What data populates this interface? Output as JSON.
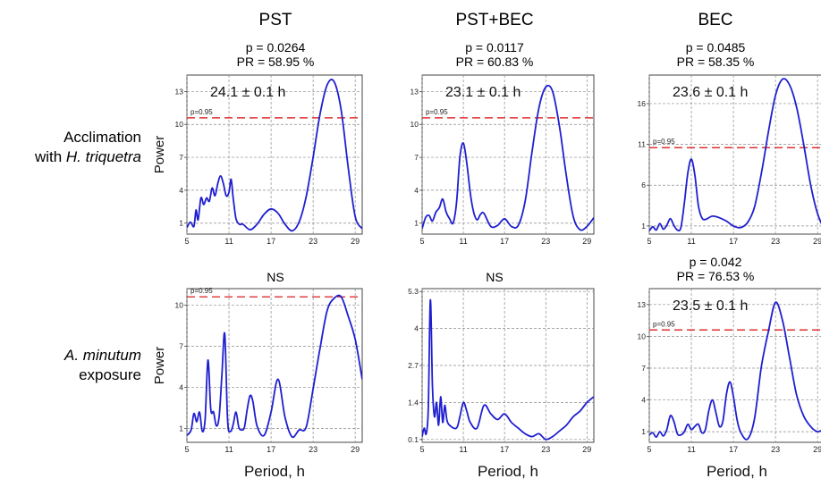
{
  "column_titles": [
    "PST",
    "PST+BEC",
    "BEC"
  ],
  "row_labels": [
    {
      "line1": "Acclimation",
      "line2_prefix": "with ",
      "line2_italic": "H. triquetra"
    },
    {
      "line1_italic": "A. minutum",
      "line2": "exposure"
    }
  ],
  "panels": [
    {
      "p": "p = 0.0264",
      "pr": "PR = 58.95 %",
      "period": "24.1 ± 0.1 h",
      "ns": ""
    },
    {
      "p": "p = 0.0117",
      "pr": "PR = 60.83 %",
      "period": "23.1 ± 0.1 h",
      "ns": ""
    },
    {
      "p": "p = 0.0485",
      "pr": "PR = 58.35 %",
      "period": "23.6 ± 0.1 h",
      "ns": ""
    },
    {
      "p": "",
      "pr": "",
      "period": "",
      "ns": "NS"
    },
    {
      "p": "",
      "pr": "",
      "period": "",
      "ns": "NS"
    },
    {
      "p": "p = 0.042",
      "pr": "PR = 76.53 %",
      "period": "23.5 ± 0.1 h",
      "ns": ""
    }
  ],
  "colors": {
    "curve": "#1f1fd0",
    "threshold": "#e03030",
    "grid": "#8a8a8a"
  },
  "chart_data": [
    {
      "type": "line",
      "xlabel": "",
      "ylabel": "Power",
      "xlim": [
        5,
        30
      ],
      "ylim": [
        0,
        14.5
      ],
      "xticks": [
        5,
        11,
        17,
        23,
        29
      ],
      "yticks": [
        1,
        4,
        7,
        10,
        13
      ],
      "threshold": 10.6,
      "threshold_label": "p=0.95",
      "series": [
        {
          "x": [
            5,
            5.5,
            6,
            6.3,
            6.6,
            7,
            7.4,
            7.8,
            8.2,
            8.6,
            9,
            9.4,
            9.8,
            10.2,
            10.6,
            11,
            11.3,
            11.6,
            12,
            12.5,
            13,
            14,
            15,
            16,
            17,
            18,
            19,
            20,
            21,
            22,
            23,
            24,
            25,
            26,
            27,
            28,
            29,
            30
          ],
          "y": [
            0.6,
            1.1,
            0.7,
            2.2,
            1.3,
            3.3,
            2.7,
            3.3,
            3.0,
            4.2,
            3.5,
            4.6,
            5.3,
            4.6,
            3.5,
            3.8,
            5.0,
            3.3,
            1.4,
            0.9,
            0.9,
            0.4,
            0.9,
            1.8,
            2.3,
            1.9,
            0.9,
            0.3,
            1.1,
            3.4,
            7.0,
            11.0,
            13.6,
            13.9,
            11.3,
            6.1,
            1.6,
            0.5
          ]
        }
      ]
    },
    {
      "type": "line",
      "xlabel": "",
      "ylabel": "",
      "xlim": [
        5,
        30
      ],
      "ylim": [
        0,
        14.5
      ],
      "xticks": [
        5,
        11,
        17,
        23,
        29
      ],
      "yticks": [
        1,
        4,
        7,
        10,
        13
      ],
      "threshold": 10.6,
      "threshold_label": "p=0.95",
      "series": [
        {
          "x": [
            5,
            5.5,
            6,
            6.5,
            7,
            7.5,
            8,
            8.5,
            9,
            9.5,
            10,
            10.5,
            11,
            11.5,
            12,
            12.5,
            13,
            13.5,
            14,
            15,
            16,
            17,
            18,
            19,
            20,
            21,
            22,
            23,
            24,
            25,
            26,
            27,
            28,
            29,
            30
          ],
          "y": [
            0.5,
            1.5,
            1.7,
            1.2,
            2.0,
            2.4,
            3.2,
            2.0,
            1.4,
            1.0,
            2.8,
            7.0,
            8.3,
            6.5,
            3.8,
            2.0,
            1.3,
            1.8,
            1.9,
            0.7,
            0.8,
            1.4,
            0.7,
            0.8,
            3.0,
            7.5,
            11.5,
            13.4,
            13.0,
            9.8,
            5.3,
            1.6,
            0.4,
            0.7,
            1.5
          ]
        }
      ]
    },
    {
      "type": "line",
      "xlabel": "",
      "ylabel": "",
      "xlim": [
        5,
        30
      ],
      "ylim": [
        0,
        19.5
      ],
      "xticks": [
        5,
        11,
        17,
        23,
        29
      ],
      "yticks": [
        1,
        6,
        11,
        16
      ],
      "threshold": 10.6,
      "threshold_label": "p=0.95",
      "series": [
        {
          "x": [
            5,
            5.5,
            6,
            6.5,
            7,
            7.5,
            8,
            8.5,
            9,
            9.5,
            10,
            10.5,
            11,
            11.5,
            12,
            12.5,
            13,
            14,
            15,
            16,
            17,
            18,
            19,
            20,
            21,
            22,
            23,
            24,
            25,
            26,
            27,
            28,
            29,
            30
          ],
          "y": [
            0.4,
            0.9,
            0.5,
            1.3,
            0.6,
            1.1,
            1.9,
            1.1,
            0.5,
            0.8,
            3.8,
            7.5,
            9.2,
            7.2,
            3.5,
            2.0,
            1.8,
            2.2,
            2.0,
            1.6,
            1.0,
            0.8,
            1.4,
            3.3,
            7.5,
            12.6,
            17.0,
            19.0,
            18.3,
            15.6,
            11.1,
            6.1,
            2.5,
            0.5
          ]
        }
      ]
    },
    {
      "type": "line",
      "xlabel": "Period, h",
      "ylabel": "Power",
      "xlim": [
        5,
        30
      ],
      "ylim": [
        0,
        11.2
      ],
      "xticks": [
        5,
        11,
        17,
        23,
        29
      ],
      "yticks": [
        1,
        4,
        7,
        10
      ],
      "threshold": 10.6,
      "threshold_label": "p=0.95",
      "series": [
        {
          "x": [
            5,
            5.6,
            6.0,
            6.4,
            6.8,
            7.2,
            7.6,
            8.0,
            8.4,
            8.8,
            9.2,
            9.6,
            10.0,
            10.4,
            10.8,
            11.2,
            11.6,
            12.0,
            12.4,
            12.8,
            13.2,
            13.6,
            14.0,
            14.4,
            15,
            16,
            17,
            18,
            19,
            20,
            21,
            22,
            23,
            24,
            25,
            26,
            27,
            28,
            29,
            30
          ],
          "y": [
            0.5,
            0.9,
            2.1,
            1.5,
            2.2,
            0.8,
            1.7,
            6.0,
            2.4,
            2.2,
            1.2,
            1.9,
            5.0,
            7.9,
            1.6,
            0.8,
            1.3,
            2.2,
            1.1,
            0.9,
            1.1,
            2.4,
            3.4,
            3.0,
            1.2,
            0.5,
            2.2,
            4.6,
            1.8,
            0.4,
            0.9,
            1.1,
            3.9,
            6.9,
            9.6,
            10.5,
            10.6,
            9.2,
            7.5,
            4.6
          ]
        }
      ]
    },
    {
      "type": "line",
      "xlabel": "Period, h",
      "ylabel": "",
      "xlim": [
        5,
        30
      ],
      "ylim": [
        0,
        5.4
      ],
      "xticks": [
        5,
        11,
        17,
        23,
        29
      ],
      "yticks": [
        0.1,
        1.4,
        2.7,
        4,
        5.3
      ],
      "threshold": null,
      "threshold_label": "",
      "series": [
        {
          "x": [
            5,
            5.3,
            5.6,
            5.9,
            6.2,
            6.5,
            6.8,
            7.1,
            7.4,
            7.7,
            8.0,
            8.3,
            8.6,
            9,
            10,
            10.5,
            11,
            11.5,
            12,
            13,
            14,
            15,
            16,
            17,
            18,
            19,
            20,
            21,
            22,
            23,
            24,
            25,
            26,
            27,
            28,
            29,
            30
          ],
          "y": [
            0.2,
            0.5,
            0.3,
            1.2,
            5.0,
            2.0,
            0.9,
            1.4,
            0.6,
            1.6,
            0.7,
            1.3,
            0.8,
            0.6,
            0.5,
            0.9,
            1.4,
            1.1,
            0.7,
            0.5,
            1.3,
            1.0,
            0.8,
            1.0,
            0.7,
            0.5,
            0.3,
            0.2,
            0.3,
            0.1,
            0.2,
            0.4,
            0.6,
            0.9,
            1.1,
            1.4,
            1.6
          ]
        }
      ]
    },
    {
      "type": "line",
      "xlabel": "Period, h",
      "ylabel": "",
      "xlim": [
        5,
        30
      ],
      "ylim": [
        0,
        14.5
      ],
      "xticks": [
        5,
        11,
        17,
        23,
        29
      ],
      "yticks": [
        1,
        4,
        7,
        10,
        13
      ],
      "threshold": 10.6,
      "threshold_label": "p=0.95",
      "series": [
        {
          "x": [
            5,
            5.5,
            6,
            6.5,
            7,
            7.5,
            8,
            8.5,
            9,
            9.5,
            10,
            10.5,
            11,
            11.5,
            12,
            12.5,
            13,
            13.5,
            14,
            14.5,
            15,
            15.5,
            16,
            16.5,
            17,
            17.5,
            18,
            19,
            20,
            21,
            22,
            23,
            24,
            25,
            26,
            27,
            28,
            29,
            30
          ],
          "y": [
            0.7,
            0.9,
            0.5,
            1.0,
            0.6,
            1.2,
            2.5,
            2.0,
            0.8,
            0.7,
            1.0,
            1.7,
            1.2,
            1.5,
            1.7,
            0.9,
            1.2,
            3.0,
            4.0,
            2.8,
            1.5,
            2.0,
            4.5,
            5.7,
            4.3,
            2.2,
            1.0,
            0.3,
            2.2,
            7.2,
            10.5,
            13.2,
            11.5,
            8.0,
            4.5,
            2.5,
            1.5,
            1.0,
            1.3
          ]
        }
      ]
    }
  ]
}
